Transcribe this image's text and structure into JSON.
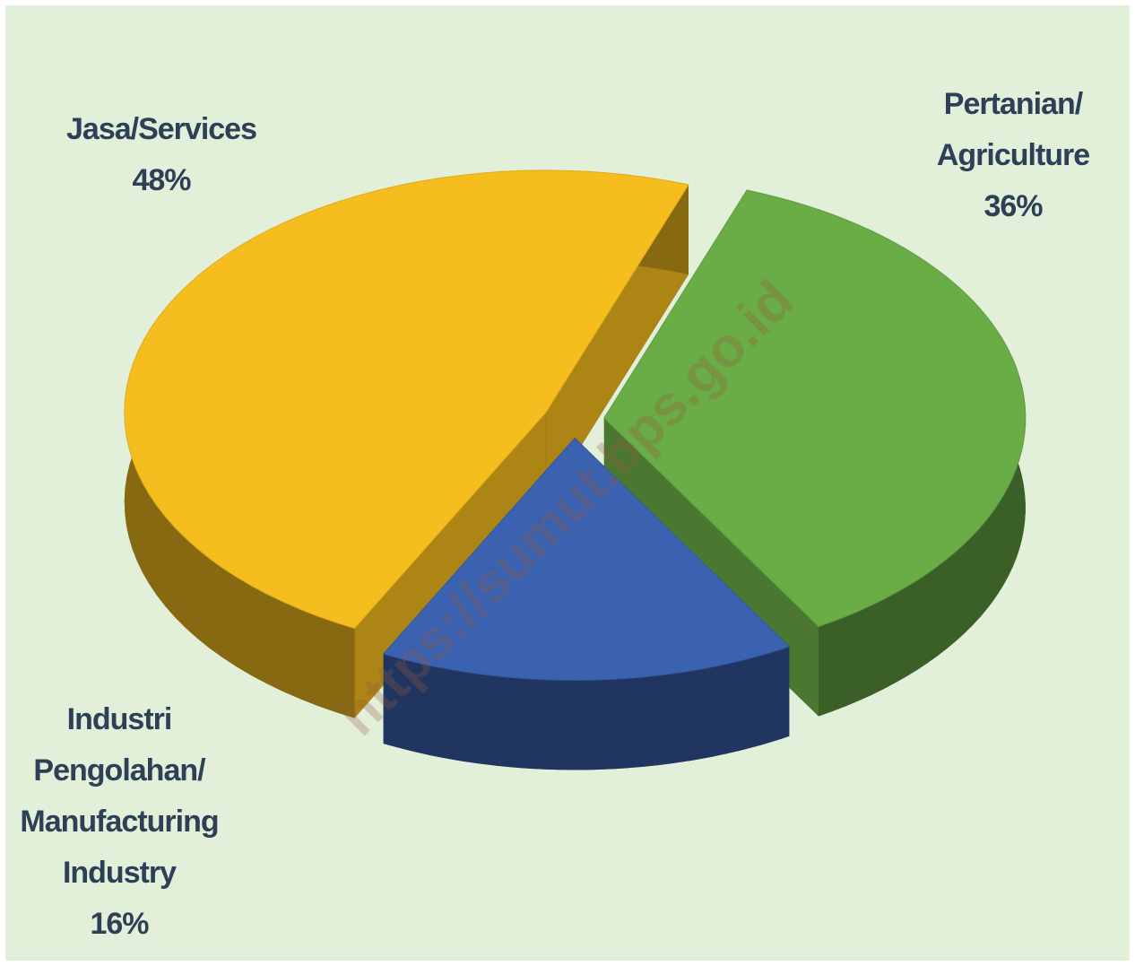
{
  "chart_data": {
    "type": "pie",
    "categories": [
      "Jasa/Services",
      "Pertanian/\nAgriculture",
      "Industri\nPengolahan/\nManufacturing\nIndustry"
    ],
    "values": [
      48,
      36,
      16
    ],
    "value_labels": [
      "48%",
      "36%",
      "16%"
    ],
    "colors": [
      "#f5be1e",
      "#6aac46",
      "#3a62b0"
    ],
    "watermark": "https://sumut.bps.go.id"
  }
}
